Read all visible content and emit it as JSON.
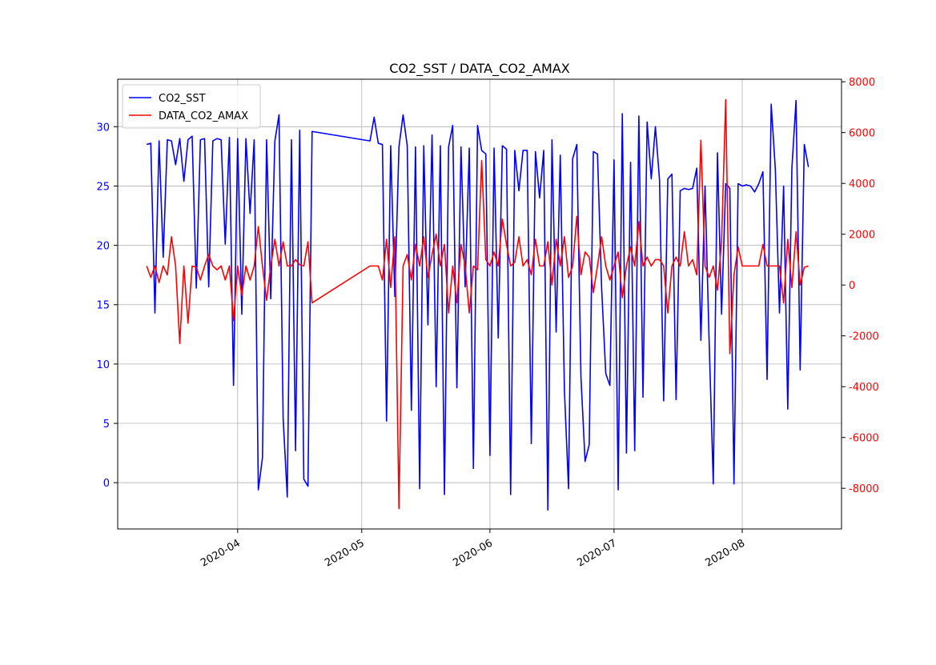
{
  "chart_data": {
    "type": "line",
    "title": "CO2_SST / DATA_CO2_AMAX",
    "x": [
      "2020-03-10",
      "2020-03-11",
      "2020-03-12",
      "2020-03-13",
      "2020-03-14",
      "2020-03-15",
      "2020-03-16",
      "2020-03-17",
      "2020-03-18",
      "2020-03-19",
      "2020-03-20",
      "2020-03-21",
      "2020-03-22",
      "2020-03-23",
      "2020-03-24",
      "2020-03-25",
      "2020-03-26",
      "2020-03-27",
      "2020-03-28",
      "2020-03-29",
      "2020-03-30",
      "2020-03-31",
      "2020-04-01",
      "2020-04-02",
      "2020-04-03",
      "2020-04-04",
      "2020-04-05",
      "2020-04-06",
      "2020-04-07",
      "2020-04-08",
      "2020-04-09",
      "2020-04-10",
      "2020-04-11",
      "2020-04-12",
      "2020-04-13",
      "2020-04-14",
      "2020-04-15",
      "2020-04-16",
      "2020-04-17",
      "2020-04-18",
      "2020-04-19",
      "2020-05-03",
      "2020-05-04",
      "2020-05-05",
      "2020-05-06",
      "2020-05-07",
      "2020-05-08",
      "2020-05-09",
      "2020-05-10",
      "2020-05-11",
      "2020-05-12",
      "2020-05-13",
      "2020-05-14",
      "2020-05-15",
      "2020-05-16",
      "2020-05-17",
      "2020-05-18",
      "2020-05-19",
      "2020-05-20",
      "2020-05-21",
      "2020-05-22",
      "2020-05-23",
      "2020-05-24",
      "2020-05-25",
      "2020-05-26",
      "2020-05-27",
      "2020-05-28",
      "2020-05-29",
      "2020-05-30",
      "2020-05-31",
      "2020-06-01",
      "2020-06-02",
      "2020-06-03",
      "2020-06-04",
      "2020-06-05",
      "2020-06-06",
      "2020-06-07",
      "2020-06-08",
      "2020-06-09",
      "2020-06-10",
      "2020-06-11",
      "2020-06-12",
      "2020-06-13",
      "2020-06-14",
      "2020-06-15",
      "2020-06-16",
      "2020-06-17",
      "2020-06-18",
      "2020-06-19",
      "2020-06-20",
      "2020-06-21",
      "2020-06-22",
      "2020-06-23",
      "2020-06-24",
      "2020-06-25",
      "2020-06-26",
      "2020-06-27",
      "2020-06-28",
      "2020-06-29",
      "2020-06-30",
      "2020-07-01",
      "2020-07-02",
      "2020-07-03",
      "2020-07-04",
      "2020-07-05",
      "2020-07-06",
      "2020-07-07",
      "2020-07-08",
      "2020-07-09",
      "2020-07-10",
      "2020-07-11",
      "2020-07-12",
      "2020-07-13",
      "2020-07-14",
      "2020-07-15",
      "2020-07-16",
      "2020-07-17",
      "2020-07-18",
      "2020-07-19",
      "2020-07-20",
      "2020-07-21",
      "2020-07-22",
      "2020-07-23",
      "2020-07-24",
      "2020-07-25",
      "2020-07-26",
      "2020-07-27",
      "2020-07-28",
      "2020-07-29",
      "2020-07-30",
      "2020-07-31",
      "2020-08-01",
      "2020-08-02",
      "2020-08-03",
      "2020-08-04",
      "2020-08-05",
      "2020-08-06",
      "2020-08-07",
      "2020-08-08",
      "2020-08-09",
      "2020-08-10",
      "2020-08-11",
      "2020-08-12",
      "2020-08-13",
      "2020-08-14",
      "2020-08-15",
      "2020-08-16",
      "2020-08-17"
    ],
    "series": [
      {
        "name": "CO2_SST",
        "color": "#0000ff",
        "axis": "y",
        "values": [
          28.5,
          28.6,
          14.3,
          28.8,
          19.0,
          28.9,
          28.8,
          26.8,
          29.0,
          25.4,
          28.9,
          29.2,
          16.4,
          28.9,
          29.0,
          16.5,
          28.8,
          29.0,
          28.9,
          20.1,
          29.1,
          8.2,
          29.0,
          14.2,
          29.0,
          22.7,
          28.9,
          -0.6,
          2.1,
          28.9,
          15.5,
          28.8,
          31.0,
          5.4,
          -1.2,
          28.9,
          2.7,
          29.7,
          0.3,
          -0.3,
          29.6,
          28.8,
          30.8,
          28.6,
          28.5,
          5.2,
          28.4,
          15.7,
          28.3,
          31.0,
          28.4,
          6.1,
          28.3,
          -0.5,
          28.4,
          13.3,
          29.3,
          8.1,
          28.4,
          -1.0,
          28.3,
          30.1,
          8.0,
          28.3,
          16.5,
          28.2,
          1.2,
          30.1,
          28.0,
          27.7,
          2.3,
          28.2,
          12.2,
          28.4,
          28.1,
          -1.0,
          28.0,
          24.6,
          28.0,
          28.0,
          3.3,
          27.9,
          24.0,
          28.0,
          -2.3,
          28.9,
          12.7,
          27.6,
          7.8,
          -0.5,
          27.3,
          28.5,
          8.9,
          1.8,
          3.2,
          27.9,
          27.7,
          16.4,
          9.2,
          8.2,
          27.2,
          -0.6,
          31.1,
          2.5,
          27.0,
          2.7,
          30.9,
          7.2,
          30.4,
          25.6,
          30.0,
          25.5,
          6.9,
          25.6,
          26.0,
          7.0,
          24.6,
          24.8,
          24.7,
          24.8,
          26.5,
          12.0,
          25.0,
          11.8,
          -0.1,
          27.8,
          14.2,
          25.2,
          24.8,
          -0.1,
          25.2,
          25.0,
          25.1,
          25.0,
          24.5,
          25.2,
          26.2,
          8.7,
          31.9,
          26.4,
          14.3,
          25.0,
          6.2,
          26.5,
          32.2,
          9.5,
          28.5,
          26.6
        ]
      },
      {
        "name": "DATA_CO2_AMAX",
        "color": "#ff0000",
        "axis": "y2",
        "values": [
          750,
          300,
          750,
          100,
          750,
          400,
          1900,
          750,
          -2300,
          750,
          -1500,
          750,
          700,
          200,
          750,
          1200,
          750,
          600,
          750,
          200,
          750,
          -1400,
          750,
          -400,
          750,
          200,
          750,
          2300,
          750,
          -600,
          750,
          1800,
          750,
          1700,
          750,
          750,
          1000,
          800,
          750,
          1700,
          -700,
          750,
          750,
          750,
          200,
          1800,
          -100,
          1900,
          -8800,
          750,
          1200,
          200,
          1600,
          750,
          1900,
          300,
          1200,
          2000,
          750,
          1600,
          -1100,
          750,
          -700,
          1600,
          750,
          -1100,
          750,
          600,
          4900,
          1000,
          750,
          1300,
          750,
          2600,
          1600,
          750,
          900,
          1900,
          750,
          1000,
          400,
          1800,
          750,
          750,
          1700,
          0,
          1800,
          750,
          1900,
          300,
          750,
          2700,
          400,
          1300,
          1100,
          -300,
          750,
          1900,
          750,
          200,
          750,
          1300,
          -500,
          750,
          1500,
          750,
          2500,
          750,
          1100,
          750,
          1000,
          1000,
          750,
          -1100,
          750,
          1100,
          750,
          2100,
          750,
          1000,
          400,
          5700,
          750,
          300,
          750,
          -200,
          1700,
          7300,
          -2700,
          400,
          1500,
          750,
          750,
          750,
          750,
          750,
          1600,
          750,
          750,
          750,
          750,
          -700,
          1800,
          -100,
          2100,
          0,
          700,
          750
        ]
      }
    ],
    "xlim": [
      "2020-03-03",
      "2020-08-25"
    ],
    "xticks": [
      {
        "value": "2020-04-01",
        "label": "2020-04"
      },
      {
        "value": "2020-05-01",
        "label": "2020-05"
      },
      {
        "value": "2020-06-01",
        "label": "2020-06"
      },
      {
        "value": "2020-07-01",
        "label": "2020-07"
      },
      {
        "value": "2020-08-01",
        "label": "2020-08"
      }
    ],
    "ylim": [
      -3.9,
      34
    ],
    "yticks": [
      0,
      5,
      10,
      15,
      20,
      25,
      30
    ],
    "y2lim": [
      -9600,
      8100
    ],
    "y2ticks": [
      -8000,
      -6000,
      -4000,
      -2000,
      0,
      2000,
      4000,
      6000,
      8000
    ],
    "grid": true,
    "legend": "upper left"
  }
}
